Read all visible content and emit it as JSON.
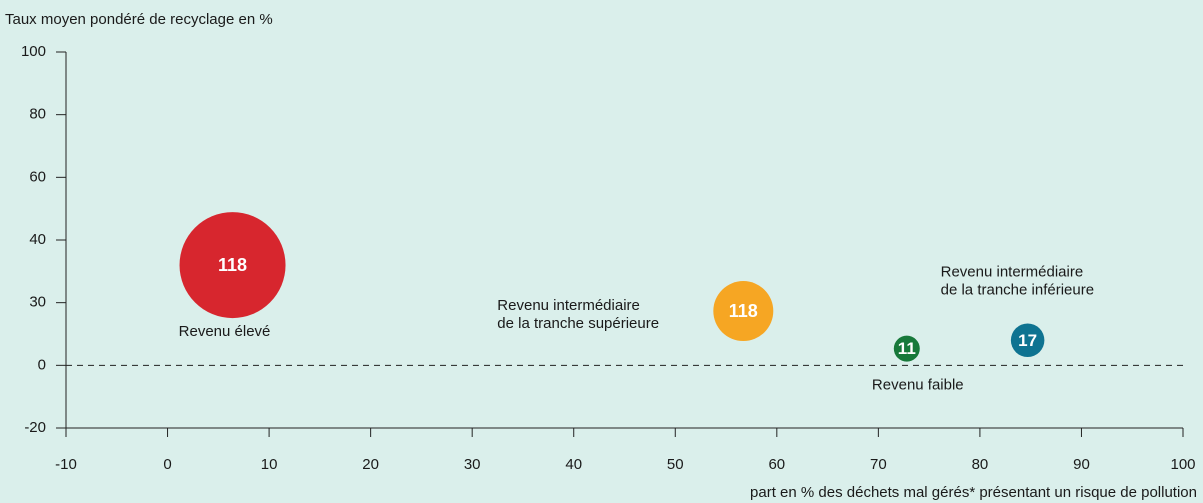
{
  "chart_data": {
    "type": "bubble",
    "y_axis_title": "Taux moyen pondéré de recyclage en %",
    "x_axis_title": "part en % des déchets mal gérés* présentant un risque de pollution",
    "xlim": [
      -10,
      100
    ],
    "xticks": [
      -10,
      0,
      10,
      20,
      30,
      40,
      50,
      60,
      70,
      80,
      90,
      100
    ],
    "ylim": [
      -20,
      100
    ],
    "yticks": [
      -20,
      0,
      30,
      40,
      60,
      80,
      100
    ],
    "zero_line": "dashed",
    "points": [
      {
        "name": [
          "Revenu élevé"
        ],
        "x": 6.4,
        "y": 36,
        "size": 100,
        "label": "118",
        "color": "#d7262e"
      },
      {
        "name": [
          "Revenu intermédiaire",
          "de la tranche supérieure"
        ],
        "x": 56.7,
        "y": 26,
        "size": 32,
        "label": "118",
        "color": "#f6a623"
      },
      {
        "name": [
          "Revenu faible"
        ],
        "x": 72.8,
        "y": 8,
        "size": 6,
        "label": "11",
        "color": "#17793a"
      },
      {
        "name": [
          "Revenu intermédiaire",
          "de la tranche inférieure"
        ],
        "x": 84.7,
        "y": 12,
        "size": 10,
        "label": "17",
        "color": "#0e7391"
      }
    ]
  }
}
